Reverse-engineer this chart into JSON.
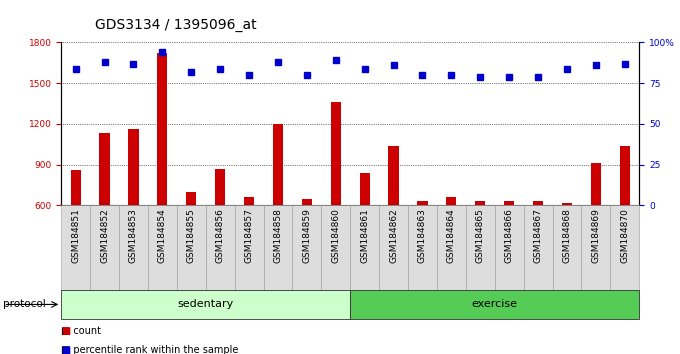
{
  "title": "GDS3134 / 1395096_at",
  "samples": [
    "GSM184851",
    "GSM184852",
    "GSM184853",
    "GSM184854",
    "GSM184855",
    "GSM184856",
    "GSM184857",
    "GSM184858",
    "GSM184859",
    "GSM184860",
    "GSM184861",
    "GSM184862",
    "GSM184863",
    "GSM184864",
    "GSM184865",
    "GSM184866",
    "GSM184867",
    "GSM184868",
    "GSM184869",
    "GSM184870"
  ],
  "bar_values": [
    860,
    1130,
    1160,
    1720,
    700,
    870,
    660,
    1200,
    650,
    1360,
    840,
    1040,
    630,
    660,
    635,
    635,
    635,
    620,
    910,
    1040
  ],
  "dot_values": [
    84,
    88,
    87,
    94,
    82,
    84,
    80,
    88,
    80,
    89,
    84,
    86,
    80,
    80,
    79,
    79,
    79,
    84,
    86,
    87
  ],
  "bar_color": "#cc0000",
  "dot_color": "#0000cc",
  "ylim_left": [
    600,
    1800
  ],
  "ylim_right": [
    0,
    100
  ],
  "yticks_left": [
    600,
    900,
    1200,
    1500,
    1800
  ],
  "yticks_right": [
    0,
    25,
    50,
    75,
    100
  ],
  "ytick_labels_right": [
    "0",
    "25",
    "50",
    "75",
    "100%"
  ],
  "groups": [
    {
      "label": "sedentary",
      "start": 0,
      "end": 10,
      "color": "#ccffcc"
    },
    {
      "label": "exercise",
      "start": 10,
      "end": 20,
      "color": "#55cc55"
    }
  ],
  "group_row_label": "protocol",
  "legend_items": [
    {
      "label": "count",
      "color": "#cc0000"
    },
    {
      "label": "percentile rank within the sample",
      "color": "#0000cc"
    }
  ],
  "background_color": "#ffffff",
  "plot_bg_color": "#ffffff",
  "title_fontsize": 10,
  "tick_fontsize": 6.5,
  "label_fontsize": 8,
  "bar_width": 0.35
}
